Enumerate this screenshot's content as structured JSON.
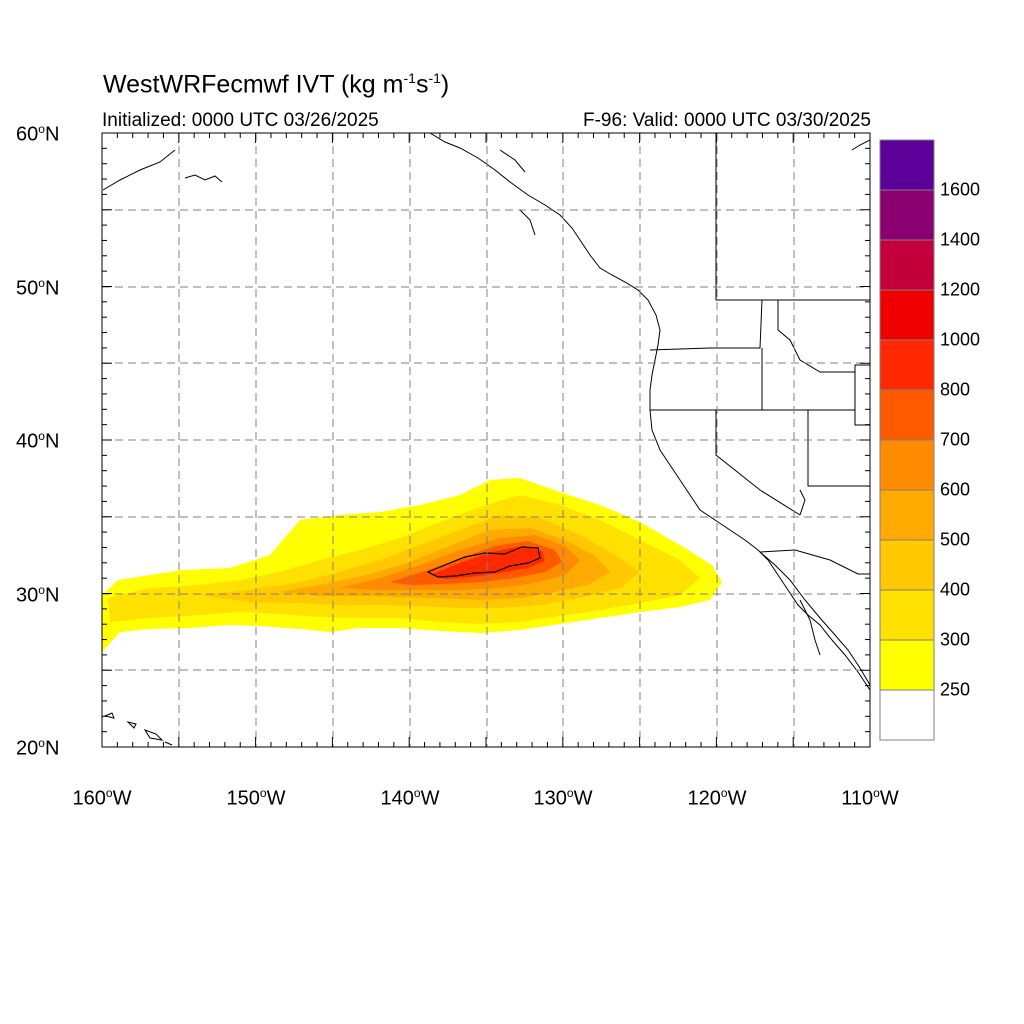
{
  "title": {
    "main": "WestWRFecmwf IVT",
    "units_open": " (kg m",
    "sup1": "-1",
    "units_mid": "s",
    "sup2": "-1",
    "units_close": ")"
  },
  "subtitle_left": "Initialized: 0000 UTC 03/26/2025",
  "subtitle_right": "F-96: Valid: 0000 UTC 03/30/2025",
  "map": {
    "lon_range": [
      -160,
      -110
    ],
    "lat_range": [
      20,
      60
    ],
    "lat_labels": [
      "60",
      "50",
      "40",
      "30",
      "20"
    ],
    "lat_suffix": "N",
    "lon_labels": [
      "160",
      "150",
      "140",
      "130",
      "120",
      "110"
    ],
    "lon_suffix": "W",
    "degree_sign": "o",
    "grid": "dashed, every 5 degrees"
  },
  "colorbar": {
    "labels": [
      "1600",
      "1400",
      "1200",
      "1000",
      "800",
      "700",
      "600",
      "500",
      "400",
      "300",
      "250"
    ],
    "colors": [
      "#ffffff",
      "#ffff00",
      "#ffe100",
      "#ffc800",
      "#ffaa00",
      "#ff8c00",
      "#ff5a00",
      "#ff2800",
      "#ee0000",
      "#c4003c",
      "#8a0070",
      "#5c0099"
    ],
    "outline": "#808080"
  },
  "colors": {
    "coast": "#000000",
    "border": "#000000",
    "grid": "#808080"
  }
}
